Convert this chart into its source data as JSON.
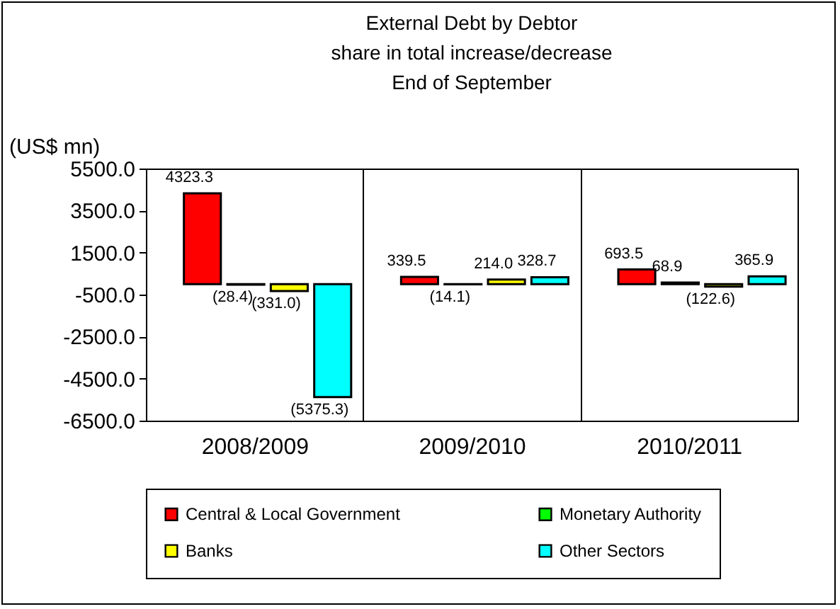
{
  "chart_data": {
    "type": "bar",
    "title": [
      "External Debt by Debtor",
      "share in total increase/decrease",
      "End of September"
    ],
    "ylabel": "(US$ mn)",
    "categories": [
      "2008/2009",
      "2009/2010",
      "2010/2011"
    ],
    "series": [
      {
        "name": "Central & Local Government",
        "color": "#ff0000",
        "values": [
          4323.3,
          339.5,
          693.5
        ],
        "value_labels": [
          "4323.3",
          "339.5",
          "693.5"
        ]
      },
      {
        "name": "Monetary Authority",
        "color": "#00ff00",
        "values": [
          -28.4,
          -14.1,
          68.9
        ],
        "value_labels": [
          "(28.4)",
          "(14.1)",
          "68.9"
        ]
      },
      {
        "name": "Banks",
        "color": "#ffff00",
        "values": [
          -331.0,
          214.0,
          -122.6
        ],
        "value_labels": [
          "(331.0)",
          "214.0",
          "(122.6)"
        ]
      },
      {
        "name": "Other Sectors",
        "color": "#00ffff",
        "values": [
          -5375.3,
          328.7,
          365.9
        ],
        "value_labels": [
          "(5375.3)",
          "328.7",
          "365.9"
        ]
      }
    ],
    "ylim": [
      -6500,
      5500
    ],
    "yticks": [
      {
        "value": 5500,
        "label": "5500.0"
      },
      {
        "value": 3500,
        "label": "3500.0"
      },
      {
        "value": 1500,
        "label": "1500.0"
      },
      {
        "value": -500,
        "label": "-500.0"
      },
      {
        "value": -2500,
        "label": "-2500.0"
      },
      {
        "value": -4500,
        "label": "-4500.0"
      },
      {
        "value": -6500,
        "label": "-6500.0"
      }
    ],
    "grid": "x",
    "legend": "bottom"
  }
}
